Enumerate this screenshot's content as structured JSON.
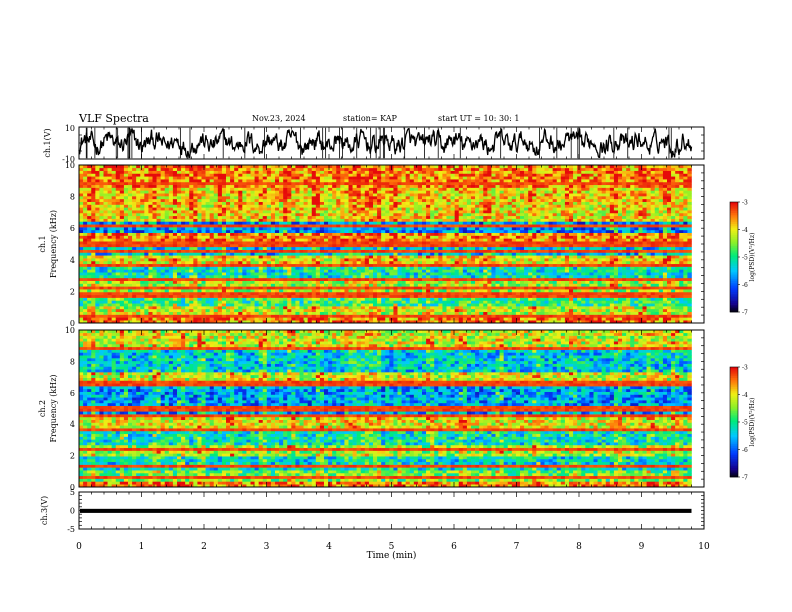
{
  "header": {
    "title": "VLF Spectra",
    "date": "Nov.23, 2024",
    "station": "station= KAP",
    "start": "start  UT =   10: 30: 1"
  },
  "chart_data": [
    {
      "type": "line",
      "panel": "ch1-waveform",
      "ylabel": "ch.1(V)",
      "ylim": [
        -10,
        10
      ],
      "yticks": [
        "10",
        "-10"
      ],
      "xlim": [
        0,
        10
      ],
      "color": "#000000",
      "description_values": {
        "mean": 0,
        "min": -9.5,
        "max": 9.5
      }
    },
    {
      "type": "heatmap",
      "panel": "ch1-spectrogram",
      "ylabel": "ch.1\nFrequency (kHz)",
      "ylim": [
        0,
        10
      ],
      "yticks": [
        "0",
        "2",
        "4",
        "6",
        "8",
        "10"
      ],
      "xlim": [
        0,
        10
      ],
      "data_end_min": 9.8,
      "colorbar": {
        "label": "log(PSD)(V²/Hz)",
        "range": [
          -7,
          -3
        ],
        "ticks": [
          "-3",
          "-4",
          "-5",
          "-6",
          "-7"
        ]
      },
      "bands": [
        {
          "from": 0.0,
          "to": 0.3,
          "level": -3.6
        },
        {
          "from": 0.3,
          "to": 1.0,
          "level": -4.2
        },
        {
          "from": 1.0,
          "to": 1.8,
          "level": -4.9
        },
        {
          "from": 1.8,
          "to": 2.6,
          "level": -4.4
        },
        {
          "from": 2.6,
          "to": 3.6,
          "level": -5.2
        },
        {
          "from": 3.6,
          "to": 4.2,
          "level": -4.0
        },
        {
          "from": 4.2,
          "to": 4.9,
          "level": -5.5
        },
        {
          "from": 4.9,
          "to": 5.7,
          "level": -3.6
        },
        {
          "from": 5.7,
          "to": 6.4,
          "level": -5.8
        },
        {
          "from": 6.4,
          "to": 7.5,
          "level": -4.0
        },
        {
          "from": 7.5,
          "to": 8.6,
          "level": -3.9
        },
        {
          "from": 8.6,
          "to": 10.0,
          "level": -3.6
        }
      ],
      "lines_khz": [
        0.5,
        1.8,
        2.2,
        2.8,
        3.6,
        4.5,
        4.9,
        5.0,
        6.2,
        8.8
      ],
      "events_min": [
        0.15,
        0.6,
        1.15,
        1.5,
        1.8,
        2.25,
        2.55,
        2.92,
        3.3,
        3.75,
        5.0,
        5.55,
        6.05,
        6.5,
        7.2,
        7.8,
        8.5,
        9.0,
        9.4
      ]
    },
    {
      "type": "heatmap",
      "panel": "ch2-spectrogram",
      "ylabel": "ch.2\nFrequency (kHz)",
      "ylim": [
        0,
        10
      ],
      "yticks": [
        "0",
        "2",
        "4",
        "6",
        "8",
        "10"
      ],
      "xlim": [
        0,
        10
      ],
      "data_end_min": 9.8,
      "colorbar": {
        "label": "log(PSD)(V²/Hz)",
        "range": [
          -7,
          -3
        ],
        "ticks": [
          "-3",
          "-4",
          "-5",
          "-6",
          "-7"
        ]
      },
      "bands": [
        {
          "from": 0.0,
          "to": 0.3,
          "level": -3.6
        },
        {
          "from": 0.3,
          "to": 1.0,
          "level": -4.6
        },
        {
          "from": 1.0,
          "to": 2.0,
          "level": -5.3
        },
        {
          "from": 2.0,
          "to": 2.6,
          "level": -4.4
        },
        {
          "from": 2.6,
          "to": 3.5,
          "level": -5.2
        },
        {
          "from": 3.5,
          "to": 4.4,
          "level": -4.1
        },
        {
          "from": 4.4,
          "to": 6.4,
          "level": -5.7
        },
        {
          "from": 6.4,
          "to": 7.4,
          "level": -4.2
        },
        {
          "from": 7.4,
          "to": 8.8,
          "level": -5.4
        },
        {
          "from": 8.8,
          "to": 10.0,
          "level": -4.2
        }
      ],
      "lines_khz": [
        0.6,
        1.4,
        2.4,
        3.7,
        4.6,
        5.0,
        6.6,
        8.9
      ],
      "events_min": [
        0.2,
        0.7,
        1.2,
        1.6,
        1.95,
        2.4,
        2.9,
        3.35,
        3.8,
        5.1,
        5.6,
        6.1,
        6.7,
        7.3,
        7.9,
        8.6,
        9.1,
        9.5
      ]
    },
    {
      "type": "line",
      "panel": "ch3-waveform",
      "ylabel": "ch.3(V)",
      "ylim": [
        -5,
        5
      ],
      "yticks": [
        "5",
        "0",
        "-5"
      ],
      "xlim": [
        0,
        10
      ],
      "values_range": [
        -0.6,
        0.4
      ],
      "color": "#000000"
    }
  ],
  "xaxis": {
    "label": "Time  (min)",
    "ticks": [
      "0",
      "1",
      "2",
      "3",
      "4",
      "5",
      "6",
      "7",
      "8",
      "9",
      "10"
    ]
  }
}
